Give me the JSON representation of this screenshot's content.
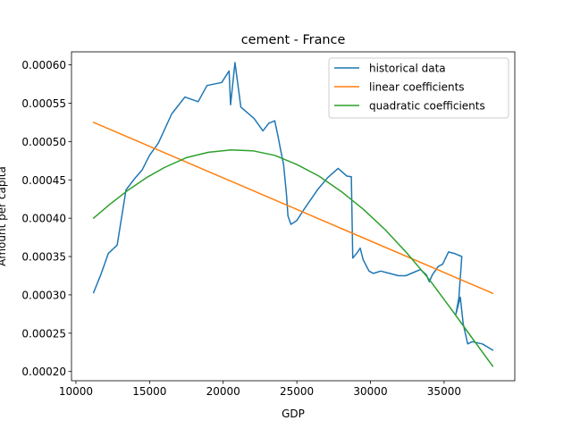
{
  "chart_data": {
    "type": "line",
    "title": "cement - France",
    "xlabel": "GDP",
    "ylabel": "Amount per capita",
    "xlim": [
      9700,
      39800
    ],
    "ylim": [
      0.000188,
      0.000617
    ],
    "xticks": [
      10000,
      15000,
      20000,
      25000,
      30000,
      35000
    ],
    "xtick_labels": [
      "10000",
      "15000",
      "20000",
      "25000",
      "30000",
      "35000"
    ],
    "yticks": [
      0.0002,
      0.00025,
      0.0003,
      0.00035,
      0.0004,
      0.00045,
      0.0005,
      0.00055,
      0.0006
    ],
    "ytick_labels": [
      "0.00020",
      "0.00025",
      "0.00030",
      "0.00035",
      "0.00040",
      "0.00045",
      "0.00050",
      "0.00055",
      "0.00060"
    ],
    "grid": false,
    "legend_position": "top-right",
    "series": [
      {
        "name": "historical data",
        "color": "#1f77b4",
        "x": [
          11200,
          11700,
          12200,
          12800,
          13400,
          14000,
          14500,
          15000,
          15600,
          16500,
          17400,
          18300,
          18900,
          19900,
          20400,
          20500,
          20800,
          21200,
          22100,
          22700,
          23100,
          23500,
          23700,
          23900,
          24100,
          24300,
          24400,
          24600,
          25000,
          25500,
          26400,
          27100,
          27800,
          28400,
          28700,
          28800,
          29100,
          29300,
          29500,
          29900,
          30200,
          30700,
          31300,
          31900,
          32400,
          32900,
          33400,
          33800,
          34000,
          34200,
          34600,
          34900,
          35300,
          35700,
          36200,
          36000,
          35800,
          36100,
          36300,
          36600,
          36900,
          37600,
          38300
        ],
        "y": [
          0.000303,
          0.000327,
          0.000354,
          0.000365,
          0.000437,
          0.000452,
          0.000463,
          0.000482,
          0.000498,
          0.000536,
          0.000558,
          0.000552,
          0.000573,
          0.000577,
          0.000592,
          0.000548,
          0.000603,
          0.000545,
          0.00053,
          0.000514,
          0.000524,
          0.000527,
          0.000509,
          0.000489,
          0.00047,
          0.00043,
          0.000403,
          0.000392,
          0.000397,
          0.000412,
          0.000437,
          0.000453,
          0.000465,
          0.000455,
          0.000454,
          0.000348,
          0.000355,
          0.000361,
          0.000346,
          0.000331,
          0.000328,
          0.000331,
          0.000328,
          0.000325,
          0.000325,
          0.000329,
          0.000333,
          0.000326,
          0.000317,
          0.000326,
          0.000337,
          0.00034,
          0.000356,
          0.000354,
          0.00035,
          0.000296,
          0.000275,
          0.000297,
          0.000262,
          0.000236,
          0.000239,
          0.000236,
          0.000228
        ]
      },
      {
        "name": "linear coefficients",
        "color": "#ff7f0e",
        "x": [
          11200,
          38300
        ],
        "y": [
          0.000525,
          0.000302
        ]
      },
      {
        "name": "quadratic coefficients",
        "color": "#2ca02c",
        "x": [
          11200,
          12300,
          13500,
          14800,
          16000,
          17500,
          19000,
          20500,
          22000,
          23500,
          25000,
          26500,
          28000,
          29500,
          31000,
          32500,
          34000,
          35500,
          37000,
          38300
        ],
        "y": [
          0.0004,
          0.000418,
          0.000436,
          0.000453,
          0.000466,
          0.000479,
          0.000486,
          0.000489,
          0.000488,
          0.000482,
          0.00047,
          0.000455,
          0.000435,
          0.000412,
          0.000385,
          0.000354,
          0.00032,
          0.000281,
          0.000241,
          0.000207
        ]
      }
    ]
  }
}
